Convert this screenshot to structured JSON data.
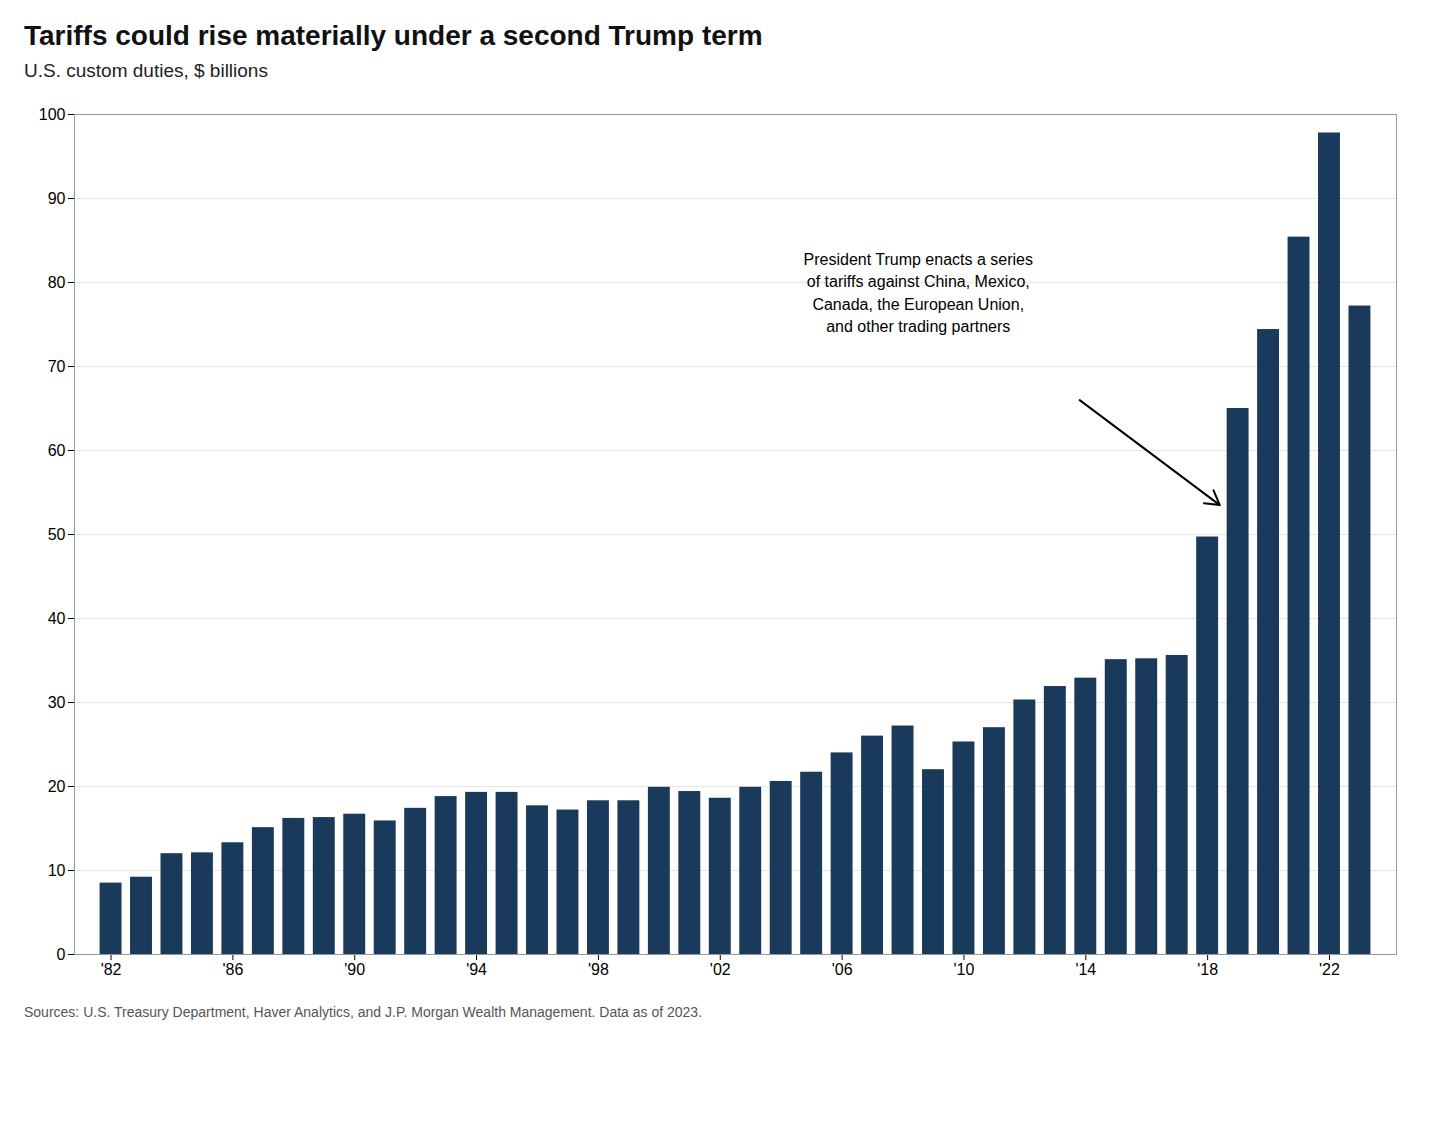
{
  "chart_data": {
    "type": "bar",
    "title": "Tariffs could rise materially under a second Trump term",
    "subtitle": "U.S. custom duties, $ billions",
    "source": "Sources: U.S. Treasury Department, Haver Analytics, and J.P. Morgan Wealth Management. Data as of 2023.",
    "annotation": "President Trump enacts a series\nof tariffs against China, Mexico,\nCanada, the European Union,\nand other trading partners",
    "x": [
      1982,
      1983,
      1984,
      1985,
      1986,
      1987,
      1988,
      1989,
      1990,
      1991,
      1992,
      1993,
      1994,
      1995,
      1996,
      1997,
      1998,
      1999,
      2000,
      2001,
      2002,
      2003,
      2004,
      2005,
      2006,
      2007,
      2008,
      2009,
      2010,
      2011,
      2012,
      2013,
      2014,
      2015,
      2016,
      2017,
      2018,
      2019,
      2020,
      2021,
      2022,
      2023
    ],
    "values": [
      8.5,
      9.2,
      12.0,
      12.1,
      13.3,
      15.1,
      16.2,
      16.3,
      16.7,
      15.9,
      17.4,
      18.8,
      19.3,
      19.3,
      17.7,
      17.2,
      18.3,
      18.3,
      19.9,
      19.4,
      18.6,
      19.9,
      20.6,
      21.7,
      24.0,
      26.0,
      27.2,
      22.0,
      25.3,
      27.0,
      30.3,
      31.9,
      32.9,
      35.1,
      35.2,
      35.6,
      49.7,
      65.0,
      74.4,
      85.4,
      97.8,
      77.2
    ],
    "color": "#1a3a5c",
    "xlim": [
      1980.8,
      2024.2
    ],
    "xticks": [
      {
        "value": 1982,
        "label": "'82"
      },
      {
        "value": 1986,
        "label": "'86"
      },
      {
        "value": 1990,
        "label": "'90"
      },
      {
        "value": 1994,
        "label": "'94"
      },
      {
        "value": 1998,
        "label": "'98"
      },
      {
        "value": 2002,
        "label": "'02"
      },
      {
        "value": 2006,
        "label": "'06"
      },
      {
        "value": 2010,
        "label": "'10"
      },
      {
        "value": 2014,
        "label": "'14"
      },
      {
        "value": 2018,
        "label": "'18"
      },
      {
        "value": 2022,
        "label": "'22"
      }
    ],
    "ylim": [
      0,
      100
    ],
    "yticks": [
      0,
      10,
      20,
      30,
      40,
      50,
      60,
      70,
      80,
      90,
      100
    ],
    "grid": true
  }
}
